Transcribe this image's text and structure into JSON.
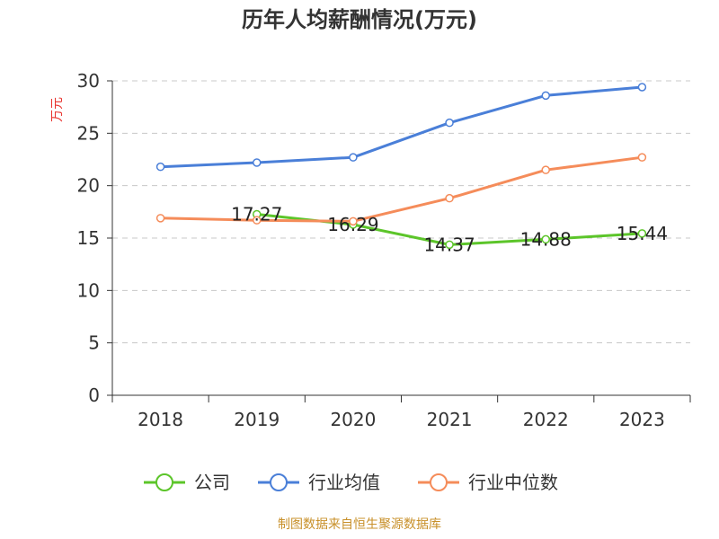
{
  "chart_data": {
    "type": "line",
    "title": "历年人均薪酬情况(万元)",
    "ylabel": "万元",
    "xlabel": "",
    "categories": [
      "2018",
      "2019",
      "2020",
      "2021",
      "2022",
      "2023"
    ],
    "ylim": [
      0,
      30
    ],
    "yticks": [
      0,
      5,
      10,
      15,
      20,
      25,
      30
    ],
    "grid": true,
    "legend_position": "bottom",
    "series": [
      {
        "name": "公司",
        "color": "#5cc52a",
        "values": [
          null,
          17.27,
          16.29,
          14.37,
          14.88,
          15.44
        ],
        "labels": [
          "",
          "17.27",
          "16.29",
          "14.37",
          "14.88",
          "15.44"
        ]
      },
      {
        "name": "行业均值",
        "color": "#4a7fd8",
        "values": [
          21.8,
          22.2,
          22.7,
          26.0,
          28.6,
          29.4
        ]
      },
      {
        "name": "行业中位数",
        "color": "#f58c5a",
        "values": [
          16.9,
          16.7,
          16.6,
          18.8,
          21.5,
          22.7
        ]
      }
    ]
  },
  "footer": {
    "source": "制图数据来自恒生聚源数据库"
  }
}
